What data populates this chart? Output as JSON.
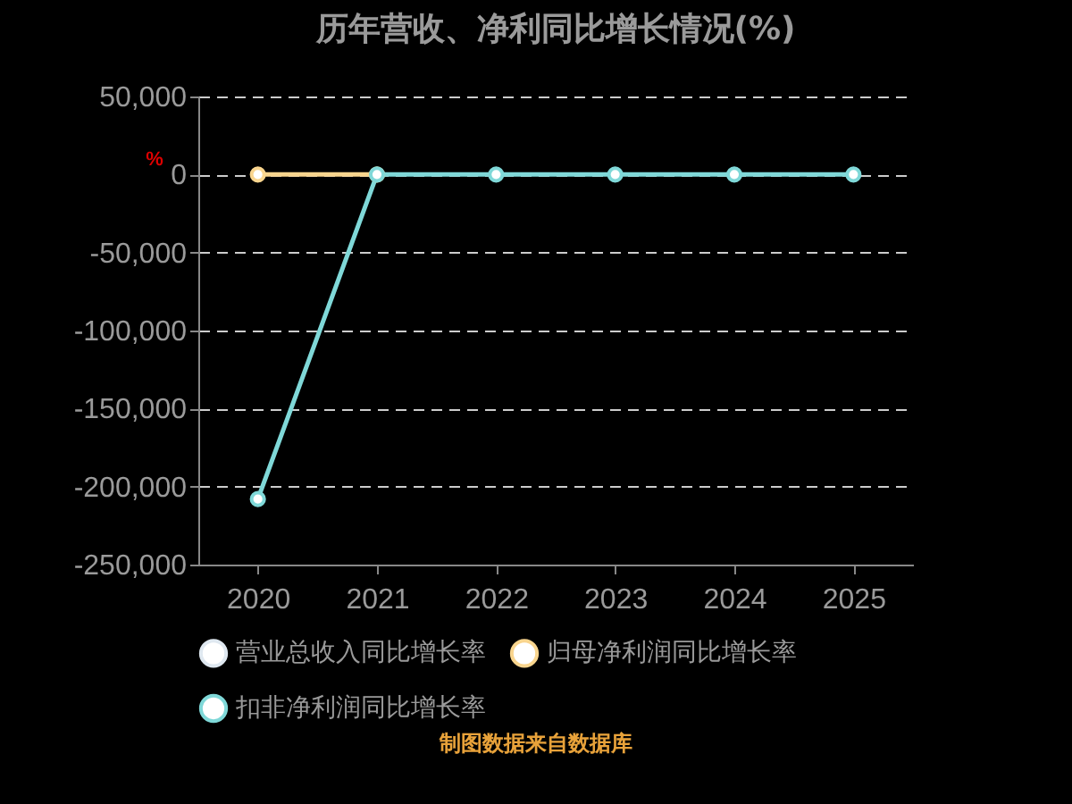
{
  "chart_data": {
    "type": "line",
    "title": "历年营收、净利同比增长情况(%)",
    "ylabel": "%",
    "categories": [
      "2020",
      "2021",
      "2022",
      "2023",
      "2024",
      "2025"
    ],
    "series": [
      {
        "name": "营业总收入同比增长率",
        "color": "#dfe8f0",
        "values": [
          null,
          null,
          null,
          null,
          null,
          null
        ]
      },
      {
        "name": "归母净利润同比增长率",
        "color": "#f9d58e",
        "values": [
          0,
          0,
          null,
          null,
          null,
          null
        ]
      },
      {
        "name": "扣非净利润同比增长率",
        "color": "#7fd8d8",
        "values": [
          -208000,
          0,
          0,
          0,
          0,
          0
        ]
      }
    ],
    "ylim": [
      -250000,
      50000
    ],
    "yticks": [
      {
        "value": -250000,
        "label": "-250,000"
      },
      {
        "value": -200000,
        "label": "-200,000"
      },
      {
        "value": -150000,
        "label": "-150,000"
      },
      {
        "value": -100000,
        "label": "-100,000"
      },
      {
        "value": -50000,
        "label": "-50,000"
      },
      0,
      {
        "value": 50000,
        "label": "50,000"
      }
    ],
    "grid": "y",
    "legend": "bottom",
    "marker": "circle",
    "line_style": "solid",
    "annotations": [
      "制图数据来自数据库"
    ]
  }
}
